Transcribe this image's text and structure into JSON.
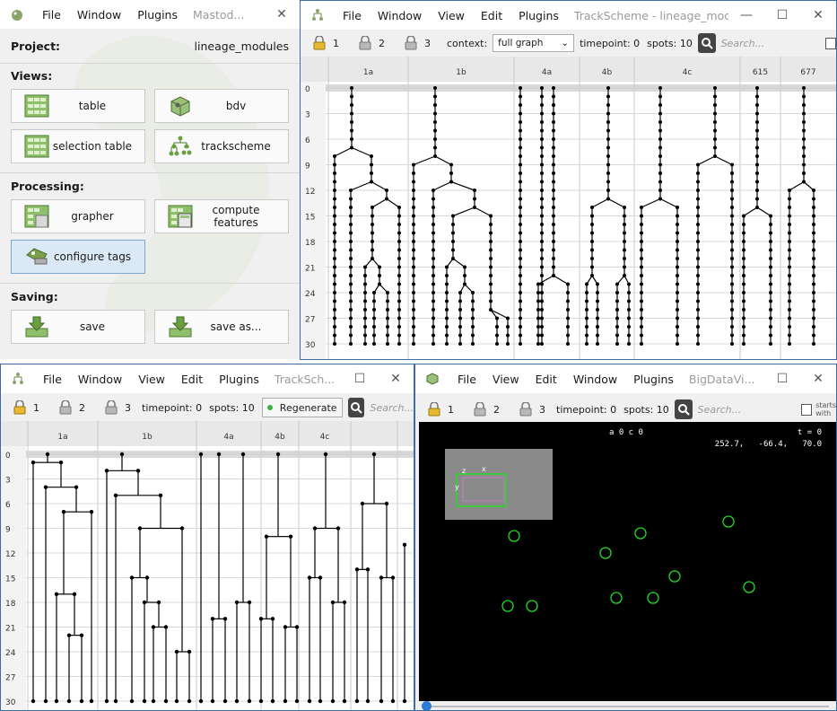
{
  "mastodon": {
    "title": "Mastod...",
    "menus": [
      "File",
      "Window",
      "Plugins"
    ],
    "project_label": "Project:",
    "project_name": "lineage_modules",
    "views_label": "Views:",
    "processing_label": "Processing:",
    "saving_label": "Saving:",
    "buttons": {
      "table": "table",
      "bdv": "bdv",
      "selection_table": "selection table",
      "trackscheme": "trackscheme",
      "grapher": "grapher",
      "compute_features": "compute features",
      "configure_tags": "configure tags",
      "save": "save",
      "save_as": "save as..."
    }
  },
  "trackscheme1": {
    "title": "TrackScheme - lineage_modules",
    "menus": [
      "File",
      "Window",
      "View",
      "Edit",
      "Plugins"
    ],
    "locks": [
      "1",
      "2",
      "3"
    ],
    "context_label": "context:",
    "context_value": "full graph",
    "timepoint": "timepoint: 0",
    "spots": "spots: 10",
    "search_placeholder": "Search...",
    "columns": [
      "1a",
      "1b",
      "4a",
      "4b",
      "4c",
      "615",
      "677"
    ],
    "row_labels": [
      "0",
      "3",
      "6",
      "9",
      "12",
      "15",
      "18",
      "21",
      "24",
      "27",
      "30"
    ]
  },
  "trackscheme2": {
    "title": "TrackSch...",
    "menus": [
      "File",
      "Window",
      "View",
      "Edit",
      "Plugins"
    ],
    "locks": [
      "1",
      "2",
      "3"
    ],
    "timepoint": "timepoint: 0",
    "spots": "spots: 10",
    "regenerate_label": "Regenerate",
    "search_placeholder": "Search...",
    "columns": [
      "1a",
      "1b",
      "4a",
      "4b",
      "4c"
    ],
    "row_labels": [
      "0",
      "3",
      "6",
      "9",
      "12",
      "15",
      "18",
      "21",
      "24",
      "27",
      "30"
    ]
  },
  "bdv": {
    "title": "BigDataVi...",
    "menus": [
      "File",
      "View",
      "Edit",
      "Window",
      "Plugins"
    ],
    "locks": [
      "1",
      "2",
      "3"
    ],
    "timepoint": "timepoint: 0",
    "spots": "spots: 10",
    "search_placeholder": "Search...",
    "starts_with_line1": "starts",
    "starts_with_line2": "with",
    "info_source": "a 0 c 0",
    "info_time": "t = 0",
    "coords": "252.7,   -66.4,   70.0",
    "axis_x": "x",
    "axis_y": "y",
    "axis_z": "z"
  },
  "colors": {
    "window_bg": "#f0f0f0",
    "frame_blue": "#3c6ea5",
    "spot_green": "#22dd22",
    "active_button": "#dbe9f6",
    "title_gray": "#9a9a9a"
  }
}
